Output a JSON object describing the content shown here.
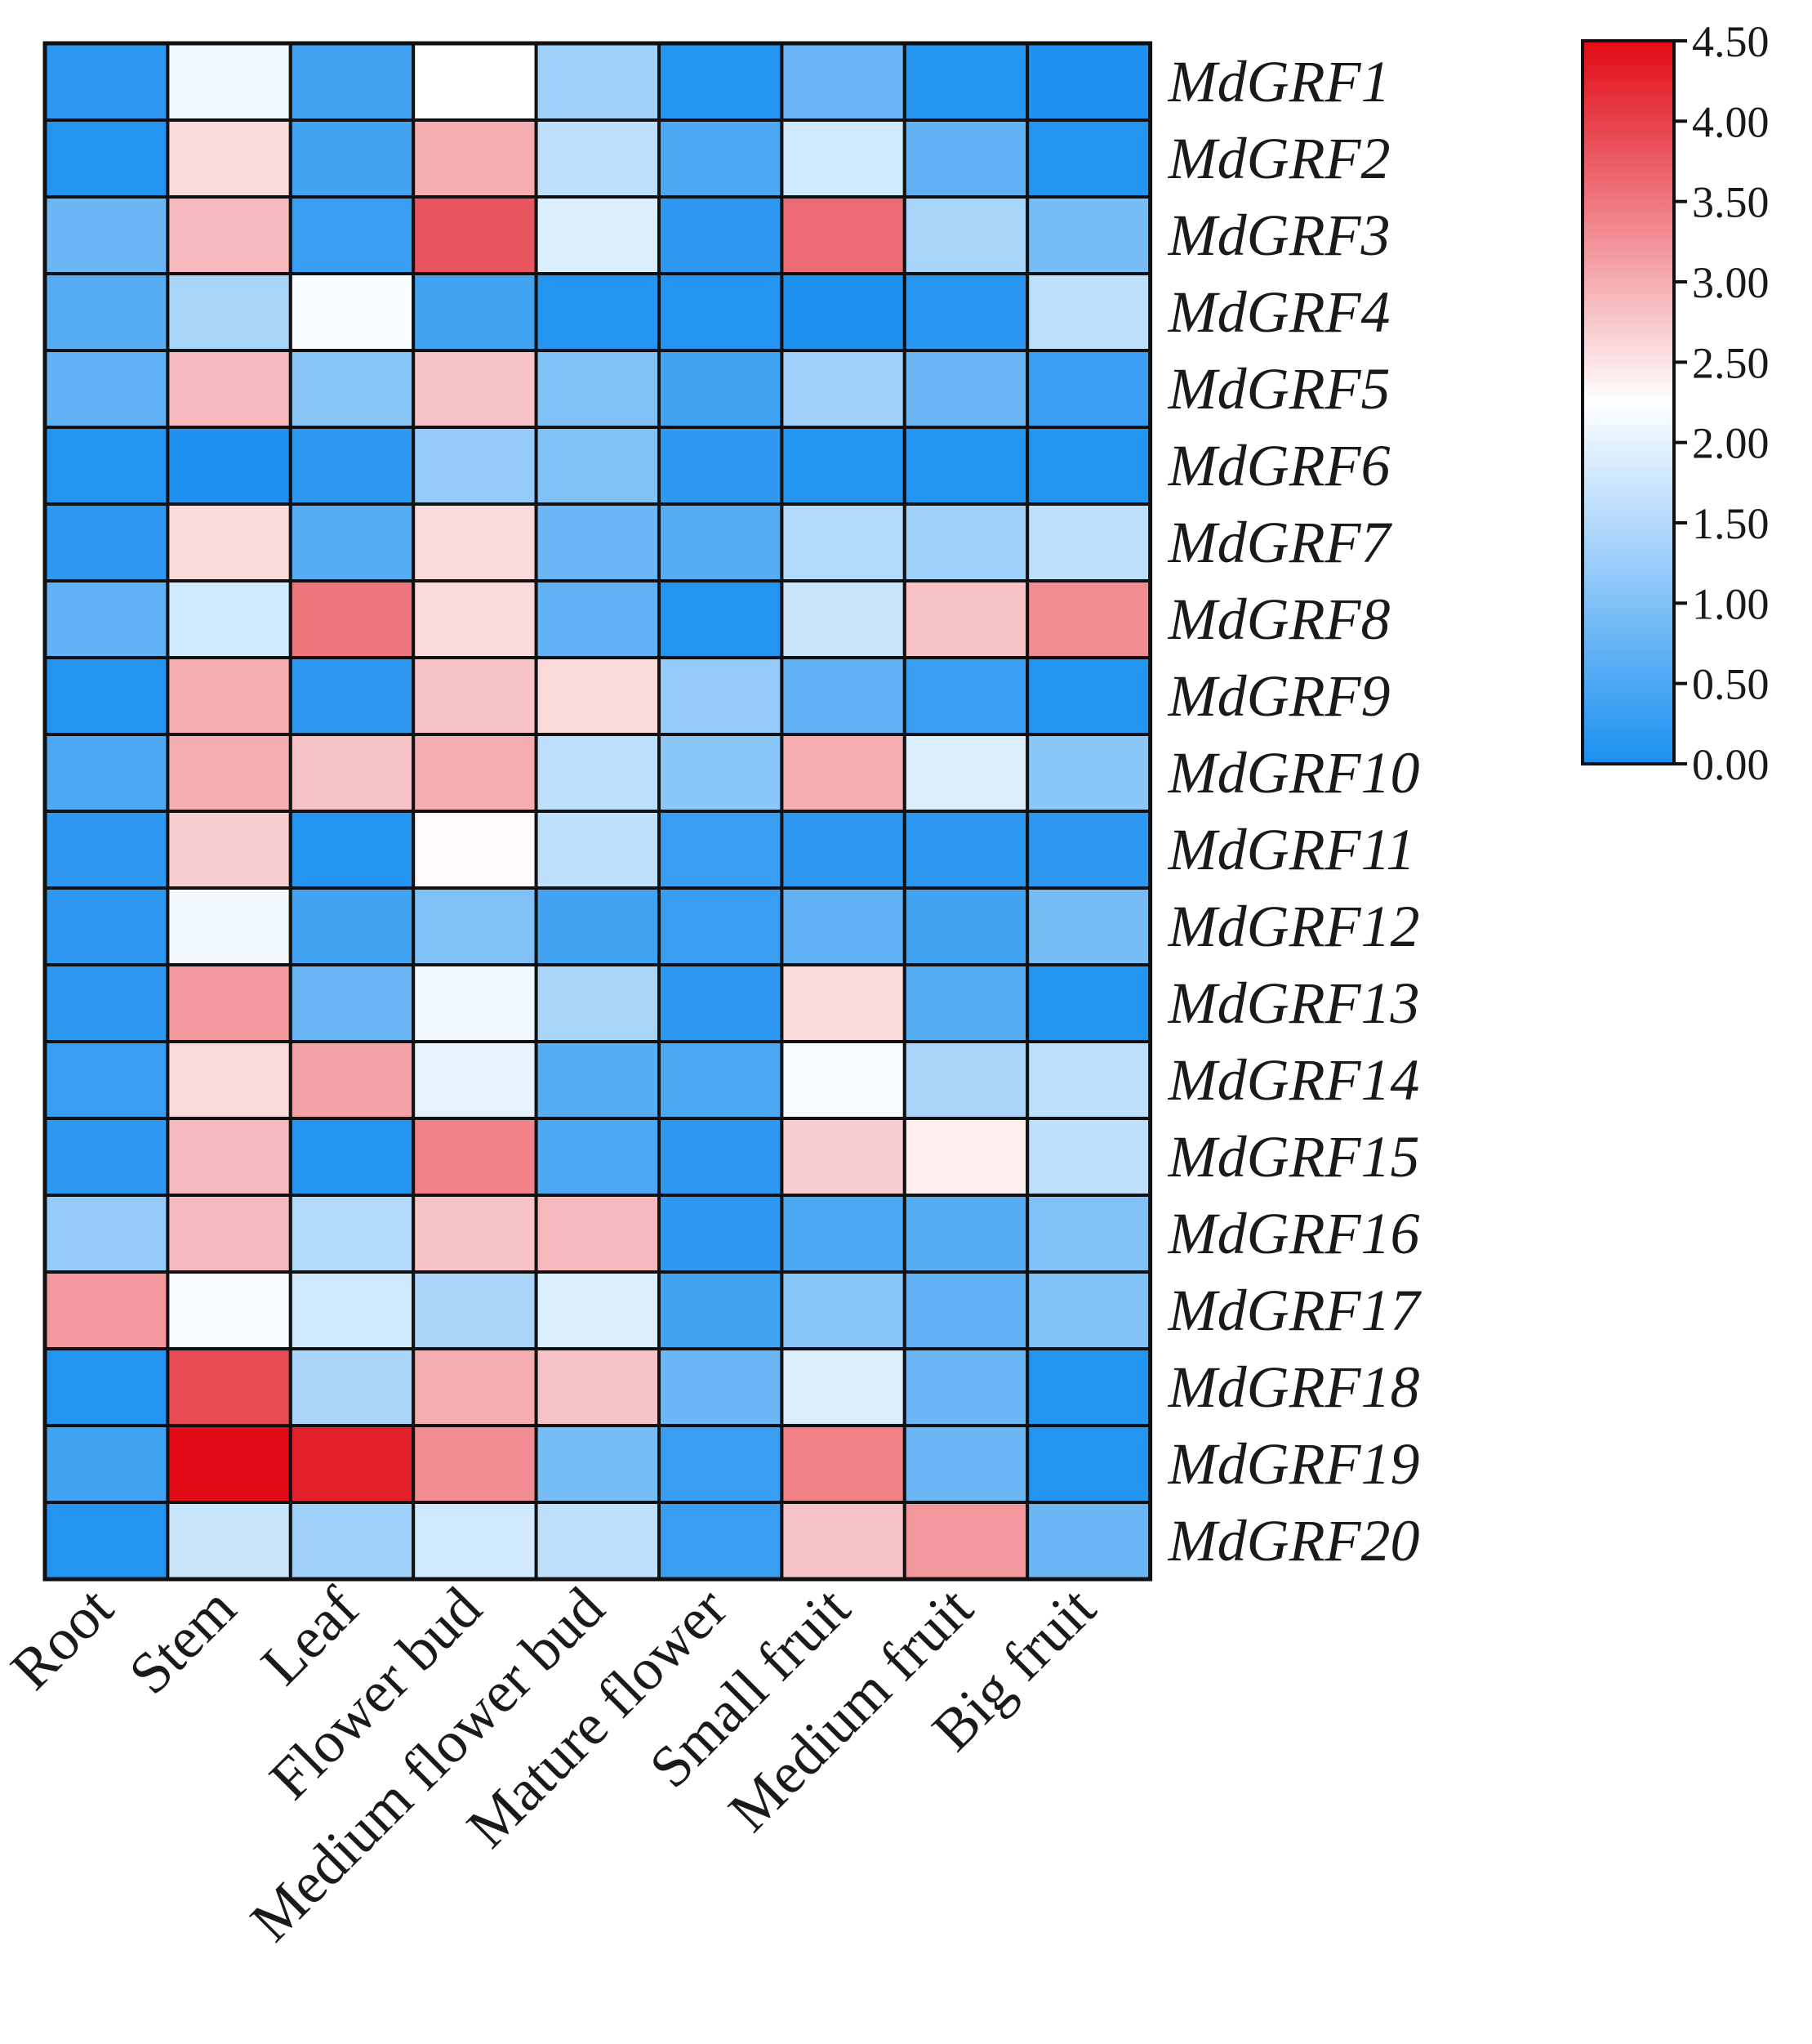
{
  "chart_data": {
    "type": "heatmap",
    "title": "",
    "xlabel": "",
    "ylabel": "",
    "columns": [
      "Root",
      "Stem",
      "Leaf",
      "Flower bud",
      "Medium flower bud",
      "Mature flower",
      "Small fruit",
      "Medium fruit",
      "Big fruit"
    ],
    "rows": [
      "MdGRF1",
      "MdGRF2",
      "MdGRF3",
      "MdGRF4",
      "MdGRF5",
      "MdGRF6",
      "MdGRF7",
      "MdGRF8",
      "MdGRF9",
      "MdGRF10",
      "MdGRF11",
      "MdGRF12",
      "MdGRF13",
      "MdGRF14",
      "MdGRF15",
      "MdGRF16",
      "MdGRF17",
      "MdGRF18",
      "MdGRF19",
      "MdGRF20"
    ],
    "values": [
      [
        0.2,
        2.1,
        0.4,
        2.25,
        1.3,
        0.1,
        0.8,
        0.1,
        0.05
      ],
      [
        0.1,
        2.6,
        0.4,
        3.0,
        1.6,
        0.5,
        1.8,
        0.7,
        0.1
      ],
      [
        0.8,
        2.9,
        0.3,
        3.8,
        1.9,
        0.2,
        3.6,
        1.4,
        0.9
      ],
      [
        0.6,
        1.4,
        2.2,
        0.4,
        0.1,
        0.1,
        0.05,
        0.15,
        1.6
      ],
      [
        0.7,
        2.9,
        1.1,
        2.8,
        1.0,
        0.4,
        1.3,
        0.8,
        0.3
      ],
      [
        0.1,
        0.05,
        0.2,
        1.2,
        1.0,
        0.2,
        0.1,
        0.1,
        0.1
      ],
      [
        0.2,
        2.6,
        0.6,
        2.6,
        0.8,
        0.6,
        1.5,
        1.3,
        1.6
      ],
      [
        0.7,
        1.8,
        3.5,
        2.6,
        0.7,
        0.1,
        1.7,
        2.8,
        3.3
      ],
      [
        0.1,
        3.0,
        0.2,
        2.8,
        2.6,
        1.2,
        0.7,
        0.3,
        0.1
      ],
      [
        0.5,
        3.0,
        2.8,
        3.0,
        1.6,
        1.1,
        3.0,
        1.9,
        1.1
      ],
      [
        0.2,
        2.7,
        0.1,
        2.3,
        1.6,
        0.3,
        0.2,
        0.2,
        0.2
      ],
      [
        0.2,
        2.1,
        0.4,
        1.0,
        0.4,
        0.3,
        0.7,
        0.4,
        0.9
      ],
      [
        0.2,
        3.2,
        0.8,
        2.1,
        1.4,
        0.2,
        2.6,
        0.6,
        0.1
      ],
      [
        0.3,
        2.6,
        3.1,
        2.0,
        0.6,
        0.5,
        2.2,
        1.4,
        1.6
      ],
      [
        0.2,
        2.9,
        0.1,
        3.4,
        0.5,
        0.2,
        2.7,
        2.4,
        1.6
      ],
      [
        1.2,
        2.9,
        1.5,
        2.8,
        2.9,
        0.2,
        0.5,
        0.6,
        1.0
      ],
      [
        3.2,
        2.2,
        1.8,
        1.4,
        1.9,
        0.4,
        1.1,
        0.7,
        1.0
      ],
      [
        0.1,
        3.9,
        1.4,
        3.0,
        2.8,
        0.8,
        1.9,
        0.8,
        0.1
      ],
      [
        0.4,
        4.5,
        4.3,
        3.3,
        0.9,
        0.3,
        3.4,
        0.8,
        0.1
      ],
      [
        0.1,
        1.7,
        1.3,
        1.8,
        1.6,
        0.3,
        2.8,
        3.2,
        0.8
      ]
    ],
    "colorbar": {
      "min": 0.0,
      "max": 4.5,
      "mid": 2.25,
      "ticks": [
        "0.00",
        "0.50",
        "1.00",
        "1.50",
        "2.00",
        "2.50",
        "3.00",
        "3.50",
        "4.00",
        "4.50"
      ],
      "colors": {
        "low": "#1a8ff0",
        "mid": "#ffffff",
        "high": "#e10a16"
      }
    },
    "grid_color": "#111111",
    "legend_position": "top-right"
  }
}
